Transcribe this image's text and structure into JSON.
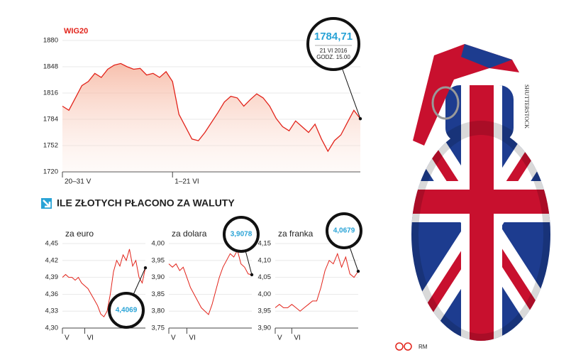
{
  "chart_data": [
    {
      "type": "line",
      "title": "WIG20",
      "categories": [
        "20–31 V",
        null,
        null,
        null,
        null,
        null,
        null,
        null,
        null,
        null,
        null,
        null,
        null,
        null,
        null,
        null,
        null,
        "1–21 VI",
        null,
        null,
        null,
        null,
        null,
        null,
        null,
        null,
        null,
        null,
        null,
        null,
        null,
        null,
        null,
        null,
        null,
        null,
        null,
        null,
        null,
        null,
        null,
        null,
        null,
        null,
        null,
        null,
        null
      ],
      "values": [
        1800,
        1795,
        1810,
        1825,
        1830,
        1840,
        1835,
        1845,
        1850,
        1852,
        1848,
        1845,
        1846,
        1838,
        1840,
        1835,
        1842,
        1830,
        1790,
        1775,
        1760,
        1758,
        1768,
        1780,
        1792,
        1805,
        1812,
        1810,
        1800,
        1808,
        1815,
        1810,
        1800,
        1785,
        1775,
        1770,
        1782,
        1775,
        1768,
        1778,
        1760,
        1745,
        1758,
        1765,
        1780,
        1795,
        1784.71
      ],
      "color": "#e2231a",
      "ylim": [
        1720,
        1880
      ],
      "yticks": [
        1720,
        1752,
        1784,
        1816,
        1848,
        1880
      ],
      "grid": true,
      "annotation": {
        "value": 1784.71,
        "label": "1784,71",
        "date": "21 VI 2016",
        "time": "GODZ. 15.00"
      }
    },
    {
      "type": "line",
      "title": "za euro",
      "categories": [
        "V",
        null,
        null,
        null,
        null,
        null,
        null,
        "VI",
        null,
        null,
        null,
        null,
        null,
        null,
        null,
        null,
        null,
        null,
        null,
        null,
        null,
        null,
        null,
        null,
        null,
        null,
        null
      ],
      "values": [
        4.39,
        4.395,
        4.39,
        4.39,
        4.385,
        4.39,
        4.38,
        4.375,
        4.37,
        4.36,
        4.35,
        4.34,
        4.325,
        4.32,
        4.33,
        4.36,
        4.4,
        4.42,
        4.41,
        4.43,
        4.42,
        4.44,
        4.41,
        4.42,
        4.39,
        4.38,
        4.4069
      ],
      "color": "#e2231a",
      "ylim": [
        4.3,
        4.45
      ],
      "yticks": [
        {
          "value": 4.3,
          "label": "4,30"
        },
        {
          "value": 4.33,
          "label": "4,33"
        },
        {
          "value": 4.36,
          "label": "4,36"
        },
        {
          "value": 4.39,
          "label": "4,39"
        },
        {
          "value": 4.42,
          "label": "4,42"
        },
        {
          "value": 4.45,
          "label": "4,45"
        }
      ],
      "grid": true,
      "annotation": {
        "value": 4.4069,
        "label": "4,4069"
      }
    },
    {
      "type": "line",
      "title": "za dolara",
      "categories": [
        "V",
        null,
        null,
        null,
        null,
        "VI",
        null,
        null,
        null,
        null,
        null,
        null,
        null,
        null,
        null,
        null,
        null,
        null,
        null,
        null,
        null,
        null,
        null,
        null
      ],
      "values": [
        3.94,
        3.93,
        3.94,
        3.92,
        3.93,
        3.9,
        3.87,
        3.85,
        3.83,
        3.81,
        3.8,
        3.79,
        3.82,
        3.86,
        3.9,
        3.93,
        3.95,
        3.97,
        3.96,
        3.98,
        3.94,
        3.93,
        3.91,
        3.9078
      ],
      "color": "#e2231a",
      "ylim": [
        3.75,
        4.0
      ],
      "yticks": [
        {
          "value": 3.75,
          "label": "3,75"
        },
        {
          "value": 3.8,
          "label": "3,80"
        },
        {
          "value": 3.85,
          "label": "3,85"
        },
        {
          "value": 3.9,
          "label": "3,90"
        },
        {
          "value": 3.95,
          "label": "3,95"
        },
        {
          "value": 4.0,
          "label": "4,00"
        }
      ],
      "grid": true,
      "annotation": {
        "value": 3.9078,
        "label": "3,9078"
      }
    },
    {
      "type": "line",
      "title": "za franka",
      "categories": [
        "V",
        null,
        null,
        null,
        "VI",
        null,
        null,
        null,
        null,
        null,
        null,
        null,
        null,
        null,
        null,
        null,
        null,
        null,
        null,
        null,
        null
      ],
      "values": [
        3.96,
        3.97,
        3.96,
        3.96,
        3.97,
        3.96,
        3.95,
        3.96,
        3.97,
        3.98,
        3.98,
        4.02,
        4.07,
        4.1,
        4.09,
        4.12,
        4.08,
        4.11,
        4.06,
        4.05,
        4.0679
      ],
      "color": "#e2231a",
      "ylim": [
        3.9,
        4.15
      ],
      "yticks": [
        {
          "value": 3.9,
          "label": "3,90"
        },
        {
          "value": 3.95,
          "label": "3,95"
        },
        {
          "value": 4.0,
          "label": "4,00"
        },
        {
          "value": 4.05,
          "label": "4,05"
        },
        {
          "value": 4.1,
          "label": "4,10"
        },
        {
          "value": 4.15,
          "label": "4,15"
        }
      ],
      "grid": true,
      "annotation": {
        "value": 4.0679,
        "label": "4,0679"
      }
    }
  ],
  "section_title": "ILE ZŁOTYCH PŁACONO ZA WALUTY",
  "photo_credit": "SHUTTERSTOCK",
  "author": "RM"
}
